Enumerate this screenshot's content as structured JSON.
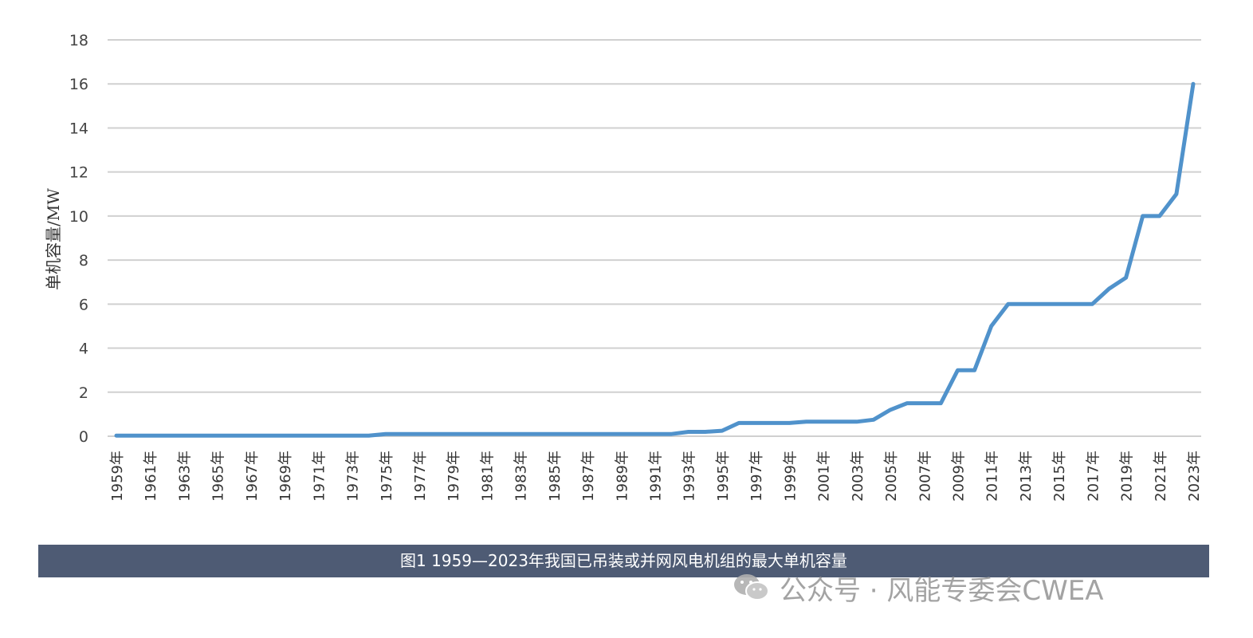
{
  "chart_data": {
    "type": "line",
    "title": "",
    "xlabel": "",
    "ylabel": "单机容量/MW",
    "ylim": [
      0,
      18
    ],
    "yticks": [
      0,
      2,
      4,
      6,
      8,
      10,
      12,
      14,
      16,
      18
    ],
    "grid": true,
    "legend": "none",
    "line_color": "#5092cb",
    "x": [
      "1959年",
      "1960年",
      "1961年",
      "1962年",
      "1963年",
      "1964年",
      "1965年",
      "1966年",
      "1967年",
      "1968年",
      "1969年",
      "1970年",
      "1971年",
      "1972年",
      "1973年",
      "1974年",
      "1975年",
      "1976年",
      "1977年",
      "1978年",
      "1979年",
      "1980年",
      "1981年",
      "1982年",
      "1983年",
      "1984年",
      "1985年",
      "1986年",
      "1987年",
      "1988年",
      "1989年",
      "1990年",
      "1991年",
      "1992年",
      "1993年",
      "1994年",
      "1995年",
      "1996年",
      "1997年",
      "1998年",
      "1999年",
      "2000年",
      "2001年",
      "2002年",
      "2003年",
      "2004年",
      "2005年",
      "2006年",
      "2007年",
      "2008年",
      "2009年",
      "2010年",
      "2011年",
      "2012年",
      "2013年",
      "2014年",
      "2015年",
      "2016年",
      "2017年",
      "2018年",
      "2019年",
      "2020年",
      "2021年",
      "2022年",
      "2023年"
    ],
    "xtick_labels": [
      "1959年",
      "1961年",
      "1963年",
      "1965年",
      "1967年",
      "1969年",
      "1971年",
      "1973年",
      "1975年",
      "1977年",
      "1979年",
      "1981年",
      "1983年",
      "1985年",
      "1987年",
      "1989年",
      "1991年",
      "1993年",
      "1995年",
      "1997年",
      "1999年",
      "2001年",
      "2003年",
      "2005年",
      "2007年",
      "2009年",
      "2011年",
      "2013年",
      "2015年",
      "2017年",
      "2019年",
      "2021年",
      "2023年"
    ],
    "series": [
      {
        "values": [
          0.03,
          0.03,
          0.03,
          0.03,
          0.03,
          0.03,
          0.03,
          0.03,
          0.03,
          0.03,
          0.03,
          0.03,
          0.03,
          0.03,
          0.03,
          0.03,
          0.1,
          0.1,
          0.1,
          0.1,
          0.1,
          0.1,
          0.1,
          0.1,
          0.1,
          0.1,
          0.1,
          0.1,
          0.1,
          0.1,
          0.1,
          0.1,
          0.1,
          0.1,
          0.2,
          0.2,
          0.25,
          0.6,
          0.6,
          0.6,
          0.6,
          0.66,
          0.66,
          0.66,
          0.66,
          0.75,
          1.2,
          1.5,
          1.5,
          1.5,
          3,
          3,
          5,
          6,
          6,
          6,
          6,
          6,
          6,
          6.7,
          7.2,
          10,
          10,
          11,
          16
        ]
      }
    ]
  },
  "caption": "图1 1959—2023年我国已吊装或并网风电机组的最大单机容量",
  "watermark": {
    "icon": "wechat-icon",
    "text": "公众号 · 风能专委会CWEA"
  },
  "colors": {
    "caption_bg": "#4e5b74",
    "grid": "#d0d0d0",
    "line": "#5092cb"
  }
}
